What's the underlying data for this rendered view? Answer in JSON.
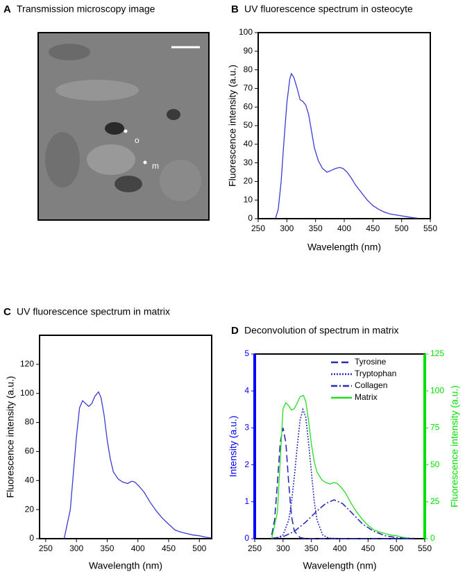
{
  "image_panel": {
    "label": "A",
    "title": "Transmission microscopy image",
    "markers": [
      "o",
      "m"
    ]
  },
  "chart_data": [
    {
      "type": "line",
      "label": "B",
      "title": "UV fluorescence spectrum in osteocyte",
      "xlabel": "Wavelength (nm)",
      "ylabel": "Fluorescence intensity (a.u.)",
      "xlim": [
        250,
        550
      ],
      "xticks": [
        250,
        300,
        350,
        400,
        450,
        500,
        550
      ],
      "ylim": [
        0,
        100
      ],
      "yticks": [
        0,
        10,
        20,
        30,
        40,
        50,
        60,
        70,
        80,
        90,
        100
      ],
      "series": [
        {
          "color": "#3a3ad6",
          "x": [
            280,
            285,
            290,
            295,
            300,
            305,
            308,
            312,
            318,
            323,
            328,
            333,
            338,
            343,
            348,
            355,
            362,
            370,
            378,
            385,
            392,
            398,
            405,
            412,
            420,
            430,
            440,
            450,
            460,
            470,
            480,
            490,
            500,
            510,
            520,
            527
          ],
          "values": [
            0,
            5,
            20,
            42,
            62,
            75,
            78,
            76,
            70,
            64,
            63,
            61,
            56,
            47,
            38,
            31,
            27,
            25,
            26,
            27,
            27.5,
            27,
            25,
            22,
            18,
            14,
            10,
            7,
            5,
            3.5,
            2.5,
            2,
            1.5,
            1,
            0.5,
            0.3
          ]
        }
      ]
    },
    {
      "type": "line",
      "label": "C",
      "title": "UV fluorescence spectrum in matrix",
      "xlabel": "Wavelength (nm)",
      "ylabel": "Fluorescence intensity (a.u.)",
      "xlim": [
        240,
        520
      ],
      "xticks": [
        250,
        300,
        350,
        400,
        450,
        500
      ],
      "ylim": [
        0,
        140
      ],
      "yticks": [
        0,
        20,
        40,
        60,
        80,
        100,
        120
      ],
      "series": [
        {
          "color": "#3a3ad6",
          "x": [
            280,
            290,
            300,
            305,
            310,
            315,
            320,
            325,
            330,
            336,
            340,
            345,
            350,
            355,
            360,
            368,
            375,
            383,
            390,
            395,
            402,
            410,
            420,
            430,
            440,
            450,
            460,
            470,
            480,
            490,
            500,
            510,
            520
          ],
          "values": [
            0,
            20,
            70,
            90,
            95,
            93,
            91,
            93,
            98,
            101,
            97,
            85,
            68,
            55,
            46,
            41,
            39,
            38,
            39.5,
            39,
            36,
            32,
            25,
            19,
            14,
            10,
            6,
            4.5,
            3.5,
            2.5,
            2,
            1,
            0.5
          ]
        }
      ]
    },
    {
      "type": "line",
      "label": "D",
      "title": "Deconvolution of spectrum in matrix",
      "xlabel": "Wavelength (nm)",
      "ylabel": "Intensity (a.u.)",
      "y2label": "Fluorescence intensity (a.u.)",
      "ycolor": "#0000ff",
      "y2color": "#00e000",
      "xlim": [
        250,
        550
      ],
      "xticks": [
        250,
        300,
        350,
        400,
        450,
        500,
        550
      ],
      "ylim": [
        0,
        5
      ],
      "yticks": [
        0,
        1,
        2,
        3,
        4,
        5
      ],
      "y2lim": [
        0,
        125
      ],
      "y2ticks": [
        0,
        25,
        50,
        75,
        100,
        125
      ],
      "legend": "upper right",
      "series": [
        {
          "name": "Tyrosine",
          "color": "#2a2ab8",
          "dash": "dashed",
          "x": [
            280,
            285,
            290,
            295,
            300,
            305,
            310,
            315,
            320,
            330,
            340,
            360,
            400,
            450,
            500,
            530
          ],
          "values": [
            0.1,
            0.5,
            1.5,
            2.6,
            3,
            2.6,
            1.5,
            0.6,
            0.2,
            0.03,
            0,
            0,
            0,
            0,
            0,
            0
          ]
        },
        {
          "name": "Tryptophan",
          "color": "#2a2ab8",
          "dash": "dotted",
          "x": [
            290,
            300,
            310,
            315,
            320,
            325,
            330,
            335,
            340,
            345,
            350,
            355,
            360,
            370,
            380,
            400,
            450,
            500,
            530
          ],
          "values": [
            0.02,
            0.1,
            0.5,
            1,
            1.7,
            2.5,
            3.2,
            3.5,
            3.3,
            2.6,
            1.8,
            1,
            0.5,
            0.1,
            0.02,
            0,
            0,
            0,
            0
          ]
        },
        {
          "name": "Collagen",
          "color": "#2a2ab8",
          "dash": "dashdot",
          "x": [
            280,
            300,
            320,
            340,
            360,
            375,
            390,
            405,
            420,
            440,
            460,
            480,
            500,
            530
          ],
          "values": [
            0.01,
            0.05,
            0.2,
            0.45,
            0.75,
            0.95,
            1.05,
            0.95,
            0.72,
            0.4,
            0.2,
            0.08,
            0.03,
            0.01
          ]
        },
        {
          "name": "Matrix",
          "color": "#22dd22",
          "dash": "solid",
          "axis": "y2",
          "x": [
            280,
            290,
            300,
            305,
            310,
            315,
            320,
            325,
            330,
            336,
            340,
            345,
            350,
            355,
            360,
            368,
            375,
            383,
            390,
            395,
            402,
            410,
            420,
            430,
            440,
            450,
            460,
            470,
            480,
            490,
            500,
            510,
            520
          ],
          "values": [
            0,
            18,
            88,
            92,
            90,
            87,
            88,
            92,
            96,
            97,
            93,
            80,
            64,
            52,
            45,
            40,
            38,
            37,
            38,
            37.5,
            35,
            31,
            24,
            18,
            13,
            9,
            6,
            4.5,
            3.5,
            2.5,
            2,
            1,
            0.5
          ]
        }
      ]
    }
  ]
}
